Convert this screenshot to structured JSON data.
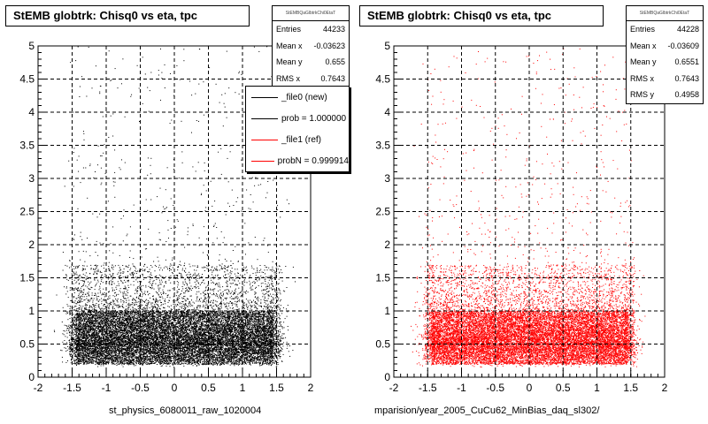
{
  "colors": {
    "left_points": "#000000",
    "right_points": "#ff0000",
    "grid": "#000000"
  },
  "left": {
    "title": "StEMB globtrk: Chisq0 vs eta, tpc",
    "stats": {
      "header": "StEMBQaGlbtrkChi0EtaT",
      "rows": [
        {
          "label": "Entries",
          "value": "44233"
        },
        {
          "label": "Mean x",
          "value": "-0.03623"
        },
        {
          "label": "Mean y",
          "value": "0.655"
        },
        {
          "label": "RMS x",
          "value": "0.7643"
        }
      ]
    },
    "legend": [
      {
        "label": "_file0 (new)",
        "color": "#000000"
      },
      {
        "label": "prob = 1.000000",
        "color": "#000000"
      },
      {
        "label": "_file1 (ref)",
        "color": "#ff0000"
      },
      {
        "label": "probN = 0.999914",
        "color": "#ff0000"
      }
    ],
    "xtitle": "st_physics_6080011_raw_1020004"
  },
  "right": {
    "title": "StEMB globtrk: Chisq0 vs eta, tpc",
    "stats": {
      "header": "StEMBQaGlbtrkChi0EtaT",
      "rows": [
        {
          "label": "Entries",
          "value": "44228"
        },
        {
          "label": "Mean x",
          "value": "-0.03609"
        },
        {
          "label": "Mean y",
          "value": "0.6551"
        },
        {
          "label": "RMS x",
          "value": "0.7643"
        },
        {
          "label": "RMS y",
          "value": "0.4958"
        }
      ]
    },
    "xtitle": "mparision/year_2005_CuCu62_MinBias_daq_sl302/"
  },
  "chart_data": [
    {
      "type": "scatter",
      "title": "StEMB globtrk: Chisq0 vs eta, tpc",
      "xlabel": "st_physics_6080011_raw_1020004",
      "ylabel": "",
      "xlim": [
        -2,
        2
      ],
      "ylim": [
        0,
        5
      ],
      "x_ticks": [
        "-2",
        "-1.5",
        "-1",
        "-0.5",
        "0",
        "0.5",
        "1",
        "1.5",
        "2"
      ],
      "y_ticks": [
        "0",
        "0.5",
        "1",
        "1.5",
        "2",
        "2.5",
        "3",
        "3.5",
        "4",
        "4.5",
        "5"
      ],
      "grid": true,
      "series": [
        {
          "name": "_file0 (new)",
          "color": "#000000"
        }
      ],
      "entries": 44233,
      "mean_x": -0.03623,
      "mean_y": 0.655,
      "rms_x": 0.7643
    },
    {
      "type": "scatter",
      "title": "StEMB globtrk: Chisq0 vs eta, tpc",
      "xlabel": "mparision/year_2005_CuCu62_MinBias_daq_sl302/",
      "ylabel": "",
      "xlim": [
        -2,
        2
      ],
      "ylim": [
        0,
        5
      ],
      "x_ticks": [
        "-2",
        "-1.5",
        "-1",
        "-0.5",
        "0",
        "0.5",
        "1",
        "1.5",
        "2"
      ],
      "y_ticks": [
        "0",
        "0.5",
        "1",
        "1.5",
        "2",
        "2.5",
        "3",
        "3.5",
        "4",
        "4.5",
        "5"
      ],
      "grid": true,
      "series": [
        {
          "name": "_file1 (ref)",
          "color": "#ff0000"
        }
      ],
      "entries": 44228,
      "mean_x": -0.03609,
      "mean_y": 0.6551,
      "rms_x": 0.7643,
      "rms_y": 0.4958
    }
  ]
}
